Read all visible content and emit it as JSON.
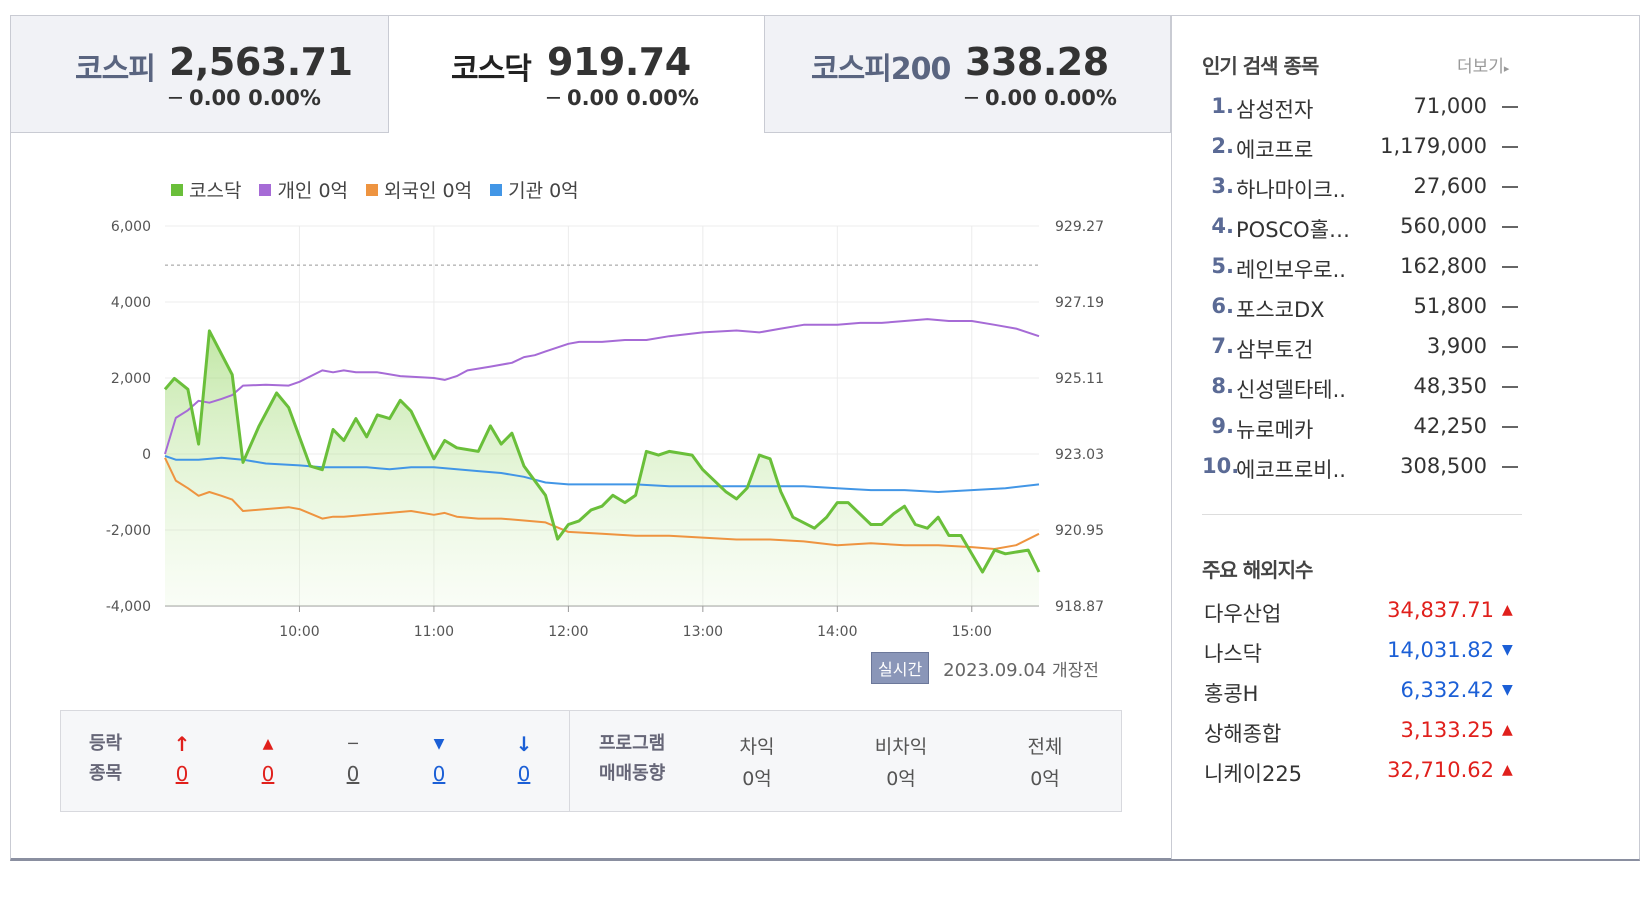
{
  "tabs": [
    {
      "name": "코스피",
      "value": "2,563.71",
      "change": "─ 0.00 0.00%"
    },
    {
      "name": "코스닥",
      "value": "919.74",
      "change": "─ 0.00 0.00%"
    },
    {
      "name": "코스피200",
      "value": "338.28",
      "change": "─ 0.00 0.00%"
    }
  ],
  "legend": [
    {
      "label": "코스닥",
      "color": "#6abf3a"
    },
    {
      "label": "개인 0억",
      "color": "#a66bd6"
    },
    {
      "label": "외국인 0억",
      "color": "#ee9440"
    },
    {
      "label": "기관 0억",
      "color": "#4296e6"
    }
  ],
  "chart_data": {
    "type": "line",
    "x_ticks": [
      "10:00",
      "11:00",
      "12:00",
      "13:00",
      "14:00",
      "15:00"
    ],
    "left_ticks": [
      "6,000",
      "4,000",
      "2,000",
      "0",
      "-2,000",
      "-4,000"
    ],
    "right_ticks": [
      "929.27",
      "927.19",
      "925.11",
      "923.03",
      "920.95",
      "918.87"
    ],
    "ylim_left": [
      -4000,
      6000
    ],
    "ylim_right": [
      918.87,
      929.27
    ],
    "x_range_hours": [
      9.0,
      15.5
    ],
    "reference_line_right": 928.2,
    "series": [
      {
        "name": "코스닥",
        "axis": "right",
        "color": "#6abf3a",
        "fill": true,
        "points": [
          [
            9.0,
            924.8
          ],
          [
            9.07,
            925.1
          ],
          [
            9.17,
            924.8
          ],
          [
            9.25,
            923.3
          ],
          [
            9.33,
            926.4
          ],
          [
            9.5,
            925.2
          ],
          [
            9.58,
            922.8
          ],
          [
            9.7,
            923.8
          ],
          [
            9.83,
            924.7
          ],
          [
            9.92,
            924.3
          ],
          [
            10.08,
            922.7
          ],
          [
            10.17,
            922.6
          ],
          [
            10.25,
            923.7
          ],
          [
            10.33,
            923.4
          ],
          [
            10.42,
            924.0
          ],
          [
            10.5,
            923.5
          ],
          [
            10.58,
            924.1
          ],
          [
            10.67,
            924.0
          ],
          [
            10.75,
            924.5
          ],
          [
            10.83,
            924.2
          ],
          [
            11.0,
            922.9
          ],
          [
            11.08,
            923.4
          ],
          [
            11.17,
            923.2
          ],
          [
            11.33,
            923.1
          ],
          [
            11.42,
            923.8
          ],
          [
            11.5,
            923.3
          ],
          [
            11.58,
            923.6
          ],
          [
            11.67,
            922.7
          ],
          [
            11.83,
            921.9
          ],
          [
            11.92,
            920.7
          ],
          [
            12.0,
            921.1
          ],
          [
            12.08,
            921.2
          ],
          [
            12.17,
            921.5
          ],
          [
            12.25,
            921.6
          ],
          [
            12.33,
            921.9
          ],
          [
            12.42,
            921.7
          ],
          [
            12.5,
            921.9
          ],
          [
            12.58,
            923.1
          ],
          [
            12.67,
            923.0
          ],
          [
            12.75,
            923.1
          ],
          [
            12.92,
            923.0
          ],
          [
            13.0,
            922.6
          ],
          [
            13.17,
            922.0
          ],
          [
            13.25,
            921.8
          ],
          [
            13.33,
            922.1
          ],
          [
            13.42,
            923.0
          ],
          [
            13.5,
            922.9
          ],
          [
            13.58,
            922.0
          ],
          [
            13.67,
            921.3
          ],
          [
            13.83,
            921.0
          ],
          [
            13.92,
            921.3
          ],
          [
            14.0,
            921.7
          ],
          [
            14.08,
            921.7
          ],
          [
            14.25,
            921.1
          ],
          [
            14.33,
            921.1
          ],
          [
            14.42,
            921.4
          ],
          [
            14.5,
            921.6
          ],
          [
            14.58,
            921.1
          ],
          [
            14.67,
            921.0
          ],
          [
            14.75,
            921.3
          ],
          [
            14.83,
            920.8
          ],
          [
            14.92,
            920.8
          ],
          [
            15.08,
            919.8
          ],
          [
            15.17,
            920.4
          ],
          [
            15.25,
            920.3
          ],
          [
            15.42,
            920.4
          ],
          [
            15.5,
            919.8
          ]
        ]
      },
      {
        "name": "개인",
        "axis": "left",
        "color": "#a66bd6",
        "fill": false,
        "points": [
          [
            9.0,
            0
          ],
          [
            9.08,
            950
          ],
          [
            9.17,
            1150
          ],
          [
            9.25,
            1400
          ],
          [
            9.33,
            1350
          ],
          [
            9.42,
            1450
          ],
          [
            9.5,
            1550
          ],
          [
            9.58,
            1800
          ],
          [
            9.75,
            1820
          ],
          [
            9.92,
            1800
          ],
          [
            10.0,
            1900
          ],
          [
            10.17,
            2200
          ],
          [
            10.25,
            2150
          ],
          [
            10.33,
            2200
          ],
          [
            10.42,
            2150
          ],
          [
            10.58,
            2150
          ],
          [
            10.75,
            2050
          ],
          [
            11.0,
            2000
          ],
          [
            11.08,
            1950
          ],
          [
            11.17,
            2050
          ],
          [
            11.25,
            2200
          ],
          [
            11.42,
            2300
          ],
          [
            11.58,
            2400
          ],
          [
            11.67,
            2550
          ],
          [
            11.75,
            2600
          ],
          [
            11.83,
            2700
          ],
          [
            12.0,
            2900
          ],
          [
            12.08,
            2950
          ],
          [
            12.25,
            2950
          ],
          [
            12.42,
            3000
          ],
          [
            12.58,
            3000
          ],
          [
            12.75,
            3100
          ],
          [
            13.0,
            3200
          ],
          [
            13.25,
            3250
          ],
          [
            13.42,
            3200
          ],
          [
            13.58,
            3300
          ],
          [
            13.75,
            3400
          ],
          [
            14.0,
            3400
          ],
          [
            14.17,
            3450
          ],
          [
            14.33,
            3450
          ],
          [
            14.5,
            3500
          ],
          [
            14.67,
            3550
          ],
          [
            14.83,
            3500
          ],
          [
            15.0,
            3500
          ],
          [
            15.17,
            3400
          ],
          [
            15.33,
            3300
          ],
          [
            15.5,
            3100
          ]
        ]
      },
      {
        "name": "외국인",
        "axis": "left",
        "color": "#ee9440",
        "fill": false,
        "points": [
          [
            9.0,
            -100
          ],
          [
            9.08,
            -700
          ],
          [
            9.17,
            -900
          ],
          [
            9.25,
            -1100
          ],
          [
            9.33,
            -1000
          ],
          [
            9.42,
            -1100
          ],
          [
            9.5,
            -1200
          ],
          [
            9.58,
            -1500
          ],
          [
            9.75,
            -1450
          ],
          [
            9.92,
            -1400
          ],
          [
            10.0,
            -1450
          ],
          [
            10.17,
            -1700
          ],
          [
            10.25,
            -1650
          ],
          [
            10.33,
            -1650
          ],
          [
            10.5,
            -1600
          ],
          [
            10.67,
            -1550
          ],
          [
            10.83,
            -1500
          ],
          [
            11.0,
            -1600
          ],
          [
            11.08,
            -1550
          ],
          [
            11.17,
            -1650
          ],
          [
            11.33,
            -1700
          ],
          [
            11.5,
            -1700
          ],
          [
            11.67,
            -1750
          ],
          [
            11.83,
            -1800
          ],
          [
            12.0,
            -2050
          ],
          [
            12.25,
            -2100
          ],
          [
            12.5,
            -2150
          ],
          [
            12.75,
            -2150
          ],
          [
            13.0,
            -2200
          ],
          [
            13.25,
            -2250
          ],
          [
            13.5,
            -2250
          ],
          [
            13.75,
            -2300
          ],
          [
            14.0,
            -2400
          ],
          [
            14.25,
            -2350
          ],
          [
            14.5,
            -2400
          ],
          [
            14.75,
            -2400
          ],
          [
            15.0,
            -2450
          ],
          [
            15.17,
            -2500
          ],
          [
            15.33,
            -2400
          ],
          [
            15.5,
            -2100
          ]
        ]
      },
      {
        "name": "기관",
        "axis": "left",
        "color": "#4296e6",
        "fill": false,
        "points": [
          [
            9.0,
            -50
          ],
          [
            9.08,
            -150
          ],
          [
            9.25,
            -150
          ],
          [
            9.42,
            -100
          ],
          [
            9.58,
            -150
          ],
          [
            9.75,
            -250
          ],
          [
            10.0,
            -300
          ],
          [
            10.17,
            -350
          ],
          [
            10.33,
            -350
          ],
          [
            10.5,
            -350
          ],
          [
            10.67,
            -400
          ],
          [
            10.83,
            -350
          ],
          [
            11.0,
            -350
          ],
          [
            11.17,
            -400
          ],
          [
            11.33,
            -450
          ],
          [
            11.5,
            -500
          ],
          [
            11.67,
            -600
          ],
          [
            11.83,
            -750
          ],
          [
            12.0,
            -800
          ],
          [
            12.25,
            -800
          ],
          [
            12.5,
            -800
          ],
          [
            12.75,
            -850
          ],
          [
            13.0,
            -850
          ],
          [
            13.25,
            -850
          ],
          [
            13.5,
            -850
          ],
          [
            13.75,
            -850
          ],
          [
            14.0,
            -900
          ],
          [
            14.25,
            -950
          ],
          [
            14.5,
            -950
          ],
          [
            14.75,
            -1000
          ],
          [
            15.0,
            -950
          ],
          [
            15.25,
            -900
          ],
          [
            15.5,
            -800
          ]
        ]
      }
    ]
  },
  "stamp": {
    "badge": "실시간",
    "date": "2023.09.04",
    "status": "개장전"
  },
  "summary": {
    "label_line1": "등락",
    "label_line2": "종목",
    "items": [
      {
        "symbol": "↑",
        "count": "0",
        "tone": "red"
      },
      {
        "symbol": "▲",
        "count": "0",
        "tone": "red"
      },
      {
        "symbol": "─",
        "count": "0",
        "tone": "dark"
      },
      {
        "symbol": "▼",
        "count": "0",
        "tone": "blue"
      },
      {
        "symbol": "↓",
        "count": "0",
        "tone": "blue"
      }
    ],
    "program_line1": "프로그램",
    "program_line2": "매매동향",
    "program": [
      {
        "label": "차익",
        "value": "0억"
      },
      {
        "label": "비차익",
        "value": "0억"
      },
      {
        "label": "전체",
        "value": "0억"
      }
    ]
  },
  "popular": {
    "title": "인기 검색 종목",
    "more": "더보기",
    "items": [
      {
        "rank": "1.",
        "name": "삼성전자",
        "price": "71,000"
      },
      {
        "rank": "2.",
        "name": "에코프로",
        "price": "1,179,000"
      },
      {
        "rank": "3.",
        "name": "하나마이크..",
        "price": "27,600"
      },
      {
        "rank": "4.",
        "name": "POSCO홀…",
        "price": "560,000"
      },
      {
        "rank": "5.",
        "name": "레인보우로..",
        "price": "162,800"
      },
      {
        "rank": "6.",
        "name": "포스코DX",
        "price": "51,800"
      },
      {
        "rank": "7.",
        "name": "삼부토건",
        "price": "3,900"
      },
      {
        "rank": "8.",
        "name": "신성델타테..",
        "price": "48,350"
      },
      {
        "rank": "9.",
        "name": "뉴로메카",
        "price": "42,250"
      },
      {
        "rank": "10.",
        "name": "에코프로비..",
        "price": "308,500"
      }
    ]
  },
  "overseas": {
    "title": "주요 해외지수",
    "items": [
      {
        "name": "다우산업",
        "value": "34,837.71",
        "arrow": "▲",
        "tone": "red"
      },
      {
        "name": "나스닥",
        "value": "14,031.82",
        "arrow": "▼",
        "tone": "blue"
      },
      {
        "name": "홍콩H",
        "value": "6,332.42",
        "arrow": "▼",
        "tone": "blue"
      },
      {
        "name": "상해종합",
        "value": "3,133.25",
        "arrow": "▲",
        "tone": "red"
      },
      {
        "name": "니케이225",
        "value": "32,710.62",
        "arrow": "▲",
        "tone": "red"
      }
    ]
  }
}
